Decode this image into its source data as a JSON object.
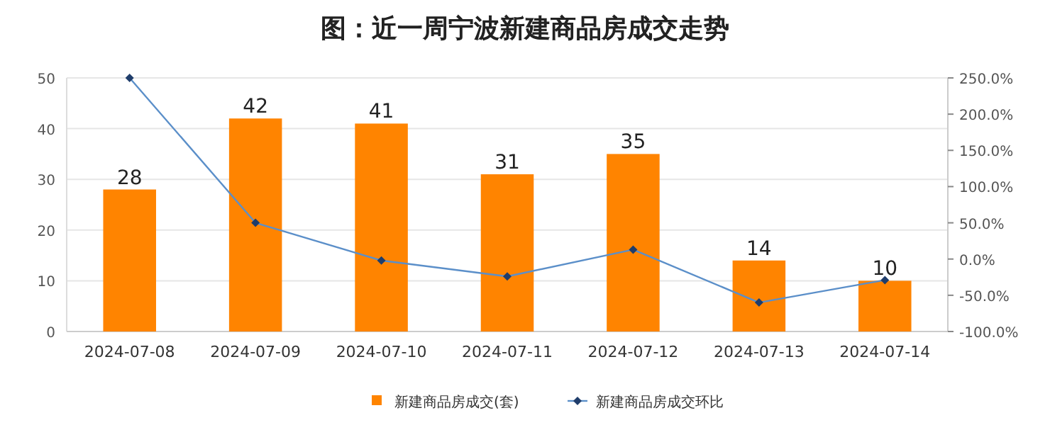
{
  "chart_data": {
    "type": "bar",
    "title": "图：近一周宁波新建商品房成交走势",
    "categories": [
      "2024-07-08",
      "2024-07-09",
      "2024-07-10",
      "2024-07-11",
      "2024-07-12",
      "2024-07-13",
      "2024-07-14"
    ],
    "series": [
      {
        "name": "新建商品房成交(套)",
        "color": "#ff8400",
        "values": [
          28,
          42,
          41,
          31,
          35,
          14,
          10
        ],
        "value_labels": [
          "28",
          "42",
          "41",
          "31",
          "35",
          "14",
          "10"
        ]
      },
      {
        "name": "新建商品房成交环比",
        "type": "line",
        "axis": "y2",
        "color": "#5b8fc9",
        "values": [
          250,
          50,
          -2,
          -24,
          13,
          -60,
          -29
        ]
      }
    ],
    "ylim": [
      0,
      50
    ],
    "yticks": [
      0,
      10,
      20,
      30,
      40,
      50
    ],
    "y2lim": [
      -100,
      250
    ],
    "y2ticks": [
      {
        "value": -100,
        "label": "-100.0%"
      },
      {
        "value": -50,
        "label": "-50.0%"
      },
      {
        "value": 0,
        "label": "0.0%"
      },
      {
        "value": 50,
        "label": "50.0%"
      },
      {
        "value": 100,
        "label": "100.0%"
      },
      {
        "value": 150,
        "label": "150.0%"
      },
      {
        "value": 200,
        "label": "200.0%"
      },
      {
        "value": 250,
        "label": "250.0%"
      }
    ],
    "grid": "y",
    "legend": "bottom",
    "marker": "diamond",
    "line_style": "solid"
  }
}
